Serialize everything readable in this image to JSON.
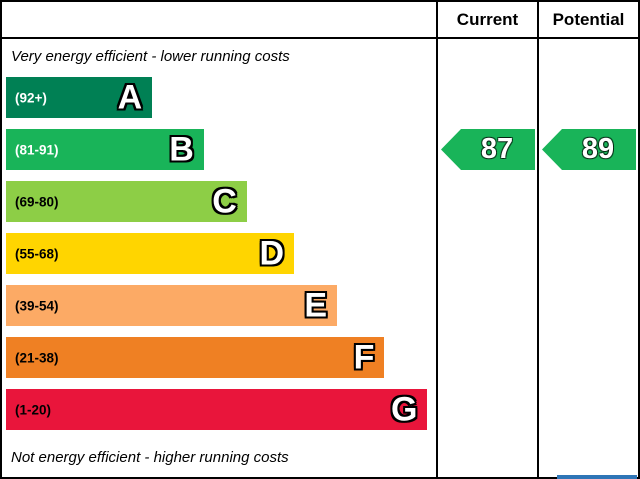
{
  "header": {
    "current_label": "Current",
    "potential_label": "Potential"
  },
  "chart_data": {
    "type": "bar",
    "title": "Energy efficiency rating chart",
    "top_caption": "Very energy efficient - lower running costs",
    "bottom_caption": "Not energy efficient - higher running costs",
    "bands": [
      {
        "letter": "A",
        "range": "(92+)",
        "color": "#008054",
        "label_color": "#ffffff",
        "width_pct": 34
      },
      {
        "letter": "B",
        "range": "(81-91)",
        "color": "#19b459",
        "label_color": "#ffffff",
        "width_pct": 46
      },
      {
        "letter": "C",
        "range": "(69-80)",
        "color": "#8dce46",
        "label_color": "#000000",
        "width_pct": 56
      },
      {
        "letter": "D",
        "range": "(55-68)",
        "color": "#ffd500",
        "label_color": "#000000",
        "width_pct": 67
      },
      {
        "letter": "E",
        "range": "(39-54)",
        "color": "#fcaa65",
        "label_color": "#000000",
        "width_pct": 77
      },
      {
        "letter": "F",
        "range": "(21-38)",
        "color": "#ef8023",
        "label_color": "#000000",
        "width_pct": 88
      },
      {
        "letter": "G",
        "range": "(1-20)",
        "color": "#e9153b",
        "label_color": "#000000",
        "width_pct": 98
      }
    ],
    "current": {
      "value": "87",
      "band": "B",
      "color": "#19b459"
    },
    "potential": {
      "value": "89",
      "band": "B",
      "color": "#19b459"
    },
    "ylim": [
      1,
      100
    ],
    "legend_position": "none",
    "grid": false
  },
  "footer": {
    "partial_box_color": "#2e75b6"
  }
}
